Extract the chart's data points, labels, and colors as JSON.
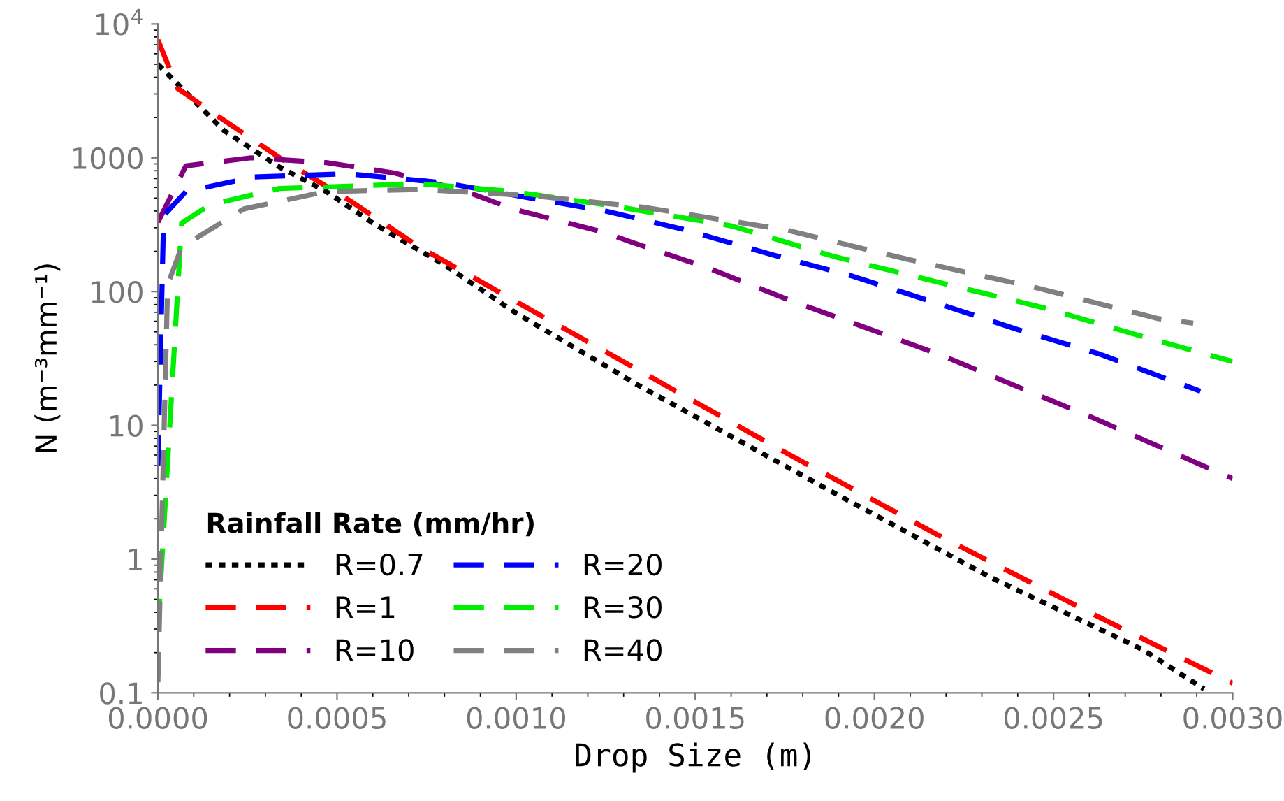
{
  "chart_data": {
    "type": "line",
    "xlabel": "Drop Size (m)",
    "ylabel": "N (m⁻³mm⁻¹)",
    "legend_title": "Rainfall Rate (mm/hr)",
    "log": "y",
    "grid": false,
    "legend": "bottom left",
    "xlim": [
      0,
      0.003
    ],
    "xticks": [
      {
        "value": 0,
        "label": "0.0000"
      },
      {
        "value": 0.0005,
        "label": "0.0005"
      },
      {
        "value": 0.001,
        "label": "0.0010"
      },
      {
        "value": 0.0015,
        "label": "0.0015"
      },
      {
        "value": 0.002,
        "label": "0.0020"
      },
      {
        "value": 0.0025,
        "label": "0.0025"
      },
      {
        "value": 0.003,
        "label": "0.0030"
      }
    ],
    "ylim": [
      0.1,
      10000
    ],
    "yticks": [
      0.1,
      1,
      10,
      100,
      1000,
      {
        "value": 10000,
        "label": "10$^{4}$"
      }
    ],
    "series": [
      {
        "name": "R=0.7",
        "color": "#000000",
        "line_style": "dotted",
        "x": [
          0,
          0.000184,
          0.00034,
          0.00047,
          0.0006,
          0.0008,
          0.001,
          0.00134,
          0.00189,
          0.00232,
          0.00275,
          0.00292
        ],
        "values": [
          5000,
          1600,
          850,
          560,
          325,
          158,
          69,
          20,
          3.1,
          0.74,
          0.21,
          0.107
        ]
      },
      {
        "name": "R=1",
        "color": "#ff0000",
        "line_style": "dashed",
        "x": [
          0,
          5.5e-05,
          0.000145,
          0.00034,
          0.000535,
          0.00073,
          0.00099,
          0.00134,
          0.00175,
          0.00218,
          0.0026,
          0.003
        ],
        "values": [
          7600,
          3300,
          2250,
          1000,
          480,
          215,
          87,
          26,
          6.3,
          1.5,
          0.4,
          0.118
        ]
      },
      {
        "name": "R=10",
        "color": "#800080",
        "line_style": "dashed",
        "x": [
          0,
          7.8e-05,
          0.00026,
          0.00047,
          0.00066,
          0.00086,
          0.00099,
          0.00125,
          0.00132,
          0.00153,
          0.00175,
          0.00218,
          0.0026,
          0.003
        ],
        "values": [
          330,
          870,
          1000,
          920,
          770,
          560,
          415,
          275,
          235,
          152,
          89,
          34,
          11.7,
          4.0
        ]
      },
      {
        "name": "R=20",
        "color": "#0000ff",
        "line_style": "dashed",
        "x": [
          0,
          1.6e-05,
          7.8e-05,
          0.00027,
          0.00053,
          0.0008,
          0.00104,
          0.00125,
          0.00147,
          0.00171,
          0.00194,
          0.00218,
          0.0024,
          0.00263,
          0.00291
        ],
        "values": [
          5,
          370,
          560,
          720,
          760,
          650,
          500,
          400,
          290,
          190,
          130,
          81,
          52,
          34,
          18
        ]
      },
      {
        "name": "R=30",
        "color": "#00ee00",
        "line_style": "dashed",
        "x": [
          0,
          6.6e-05,
          0.000145,
          0.00034,
          0.00073,
          0.00099,
          0.00125,
          0.0016,
          0.00189,
          0.00218,
          0.00247,
          0.00275,
          0.003
        ],
        "values": [
          0.3,
          325,
          445,
          590,
          640,
          560,
          445,
          310,
          182,
          117,
          76,
          46,
          30
        ]
      },
      {
        "name": "R=40",
        "color": "#808080",
        "line_style": "dashed",
        "x": [
          0,
          2.7e-05,
          6.6e-05,
          0.00024,
          0.00047,
          0.00073,
          0.00105,
          0.00136,
          0.00175,
          0.00209,
          0.00245,
          0.00279,
          0.00289
        ],
        "values": [
          0.12,
          112,
          215,
          415,
          560,
          580,
          520,
          425,
          290,
          175,
          107,
          63,
          58
        ]
      }
    ]
  }
}
